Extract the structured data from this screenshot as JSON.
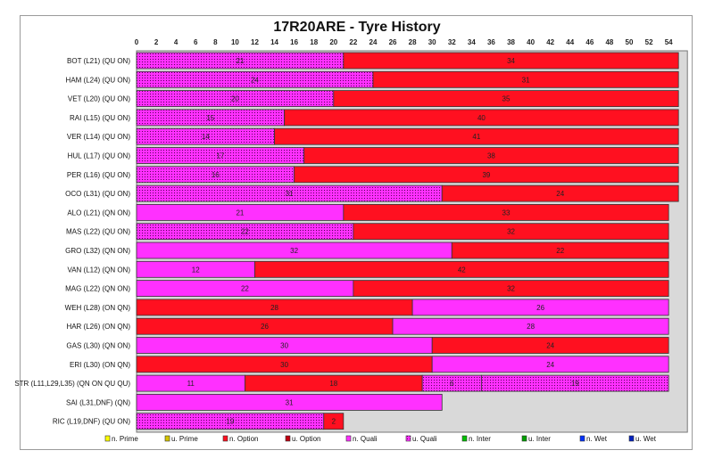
{
  "chart_data": {
    "type": "bar",
    "orientation": "horizontal-stacked",
    "title": "17R20ARE - Tyre History",
    "xlim": [
      0,
      55
    ],
    "xticks": [
      0,
      2,
      4,
      6,
      8,
      10,
      12,
      14,
      16,
      18,
      20,
      22,
      24,
      26,
      28,
      30,
      32,
      34,
      36,
      38,
      40,
      42,
      44,
      46,
      48,
      50,
      52,
      54
    ],
    "colors": {
      "n. Prime": "#ffff00",
      "u. Prime": "#d4c400",
      "n. Option": "#ff1020",
      "u. Option": "#c00010",
      "n. Quali": "#ff30ff",
      "u. Quali": "#ff30ff",
      "n. Inter": "#00c000",
      "u. Inter": "#00a000",
      "n. Wet": "#0030ff",
      "u. Wet": "#0020c0"
    },
    "legend": [
      "n. Prime",
      "u. Prime",
      "n. Option",
      "u. Option",
      "n. Quali",
      "u. Quali",
      "n. Inter",
      "u. Inter",
      "n. Wet",
      "u. Wet"
    ],
    "legend_position": "bottom",
    "rows": [
      {
        "label": "BOT (L21) (QU ON)",
        "stints": [
          [
            "u. Quali",
            21
          ],
          [
            "n. Option",
            34
          ]
        ]
      },
      {
        "label": "HAM (L24) (QU ON)",
        "stints": [
          [
            "u. Quali",
            24
          ],
          [
            "n. Option",
            31
          ]
        ]
      },
      {
        "label": "VET (L20) (QU ON)",
        "stints": [
          [
            "u. Quali",
            20
          ],
          [
            "n. Option",
            35
          ]
        ]
      },
      {
        "label": "RAI (L15) (QU ON)",
        "stints": [
          [
            "u. Quali",
            15
          ],
          [
            "n. Option",
            40
          ]
        ]
      },
      {
        "label": "VER (L14) (QU ON)",
        "stints": [
          [
            "u. Quali",
            14
          ],
          [
            "n. Option",
            41
          ]
        ]
      },
      {
        "label": "HUL (L17) (QU ON)",
        "stints": [
          [
            "u. Quali",
            17
          ],
          [
            "n. Option",
            38
          ]
        ]
      },
      {
        "label": "PER (L16) (QU ON)",
        "stints": [
          [
            "u. Quali",
            16
          ],
          [
            "n. Option",
            39
          ]
        ]
      },
      {
        "label": "OCO (L31) (QU ON)",
        "stints": [
          [
            "u. Quali",
            31
          ],
          [
            "n. Option",
            24
          ]
        ]
      },
      {
        "label": "ALO (L21) (QN ON)",
        "stints": [
          [
            "n. Quali",
            21
          ],
          [
            "n. Option",
            33
          ]
        ]
      },
      {
        "label": "MAS (L22) (QU ON)",
        "stints": [
          [
            "u. Quali",
            22
          ],
          [
            "n. Option",
            32
          ]
        ]
      },
      {
        "label": "GRO (L32) (QN ON)",
        "stints": [
          [
            "n. Quali",
            32
          ],
          [
            "n. Option",
            22
          ]
        ]
      },
      {
        "label": "VAN (L12) (QN ON)",
        "stints": [
          [
            "n. Quali",
            12
          ],
          [
            "n. Option",
            42
          ]
        ]
      },
      {
        "label": "MAG (L22) (QN ON)",
        "stints": [
          [
            "n. Quali",
            22
          ],
          [
            "n. Option",
            32
          ]
        ]
      },
      {
        "label": "WEH (L28) (ON QN)",
        "stints": [
          [
            "n. Option",
            28
          ],
          [
            "n. Quali",
            26
          ]
        ]
      },
      {
        "label": "HAR (L26) (ON QN)",
        "stints": [
          [
            "n. Option",
            26
          ],
          [
            "n. Quali",
            28
          ]
        ]
      },
      {
        "label": "GAS (L30) (QN ON)",
        "stints": [
          [
            "n. Quali",
            30
          ],
          [
            "n. Option",
            24
          ]
        ]
      },
      {
        "label": "ERI (L30) (ON QN)",
        "stints": [
          [
            "n. Option",
            30
          ],
          [
            "n. Quali",
            24
          ]
        ]
      },
      {
        "label": "STR (L11,L29,L35) (QN ON QU QU)",
        "stints": [
          [
            "n. Quali",
            11
          ],
          [
            "n. Option",
            18
          ],
          [
            "u. Quali",
            6
          ],
          [
            "u. Quali",
            19
          ]
        ]
      },
      {
        "label": "SAI (L31,DNF) (QN)",
        "stints": [
          [
            "n. Quali",
            31
          ]
        ]
      },
      {
        "label": "RIC (L19,DNF) (QU ON)",
        "stints": [
          [
            "u. Quali",
            19
          ],
          [
            "n. Option",
            2
          ]
        ]
      }
    ]
  }
}
